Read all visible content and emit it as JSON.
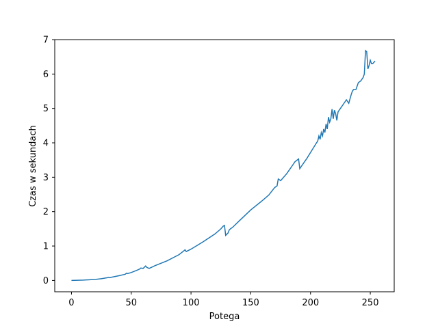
{
  "chart_data": {
    "type": "line",
    "title": "",
    "xlabel": "Potega",
    "ylabel": "Czas w sekundach",
    "xlim": [
      -14,
      270
    ],
    "ylim": [
      -0.33,
      7.0
    ],
    "xticks": [
      0,
      50,
      100,
      150,
      200,
      250
    ],
    "yticks": [
      0,
      1,
      2,
      3,
      4,
      5,
      6,
      7
    ],
    "xtick_labels": [
      "0",
      "50",
      "100",
      "150",
      "200",
      "250"
    ],
    "ytick_labels": [
      "0",
      "1",
      "2",
      "3",
      "4",
      "5",
      "6",
      "7"
    ],
    "grid": false,
    "legend": "none",
    "series": [
      {
        "color": "#1f77b4",
        "x": [
          0,
          10,
          20,
          25,
          30,
          31,
          32,
          33,
          40,
          45,
          46,
          47,
          50,
          55,
          57,
          58,
          60,
          62,
          63,
          65,
          70,
          80,
          90,
          94,
          95,
          96,
          100,
          110,
          120,
          125,
          127,
          128,
          129,
          131,
          132,
          133,
          135,
          140,
          150,
          160,
          165,
          170,
          172,
          173,
          175,
          180,
          181,
          183,
          185,
          187,
          190,
          191,
          192,
          194,
          195,
          197,
          200,
          205,
          206,
          207,
          208,
          209,
          210,
          211,
          212,
          213,
          214,
          215,
          216,
          217,
          218,
          219,
          220,
          221,
          222,
          223,
          224,
          225,
          226,
          228,
          230,
          232,
          234,
          235,
          236,
          238,
          240,
          242,
          244,
          245,
          246,
          247,
          248,
          249,
          250,
          251,
          252,
          254
        ],
        "y": [
          0.0,
          0.01,
          0.03,
          0.05,
          0.08,
          0.09,
          0.08,
          0.09,
          0.14,
          0.18,
          0.21,
          0.2,
          0.23,
          0.3,
          0.33,
          0.36,
          0.35,
          0.42,
          0.38,
          0.35,
          0.43,
          0.57,
          0.75,
          0.86,
          0.89,
          0.84,
          0.91,
          1.12,
          1.35,
          1.5,
          1.58,
          1.6,
          1.31,
          1.38,
          1.47,
          1.5,
          1.55,
          1.72,
          2.05,
          2.33,
          2.48,
          2.7,
          2.75,
          2.95,
          2.9,
          3.1,
          3.15,
          3.25,
          3.35,
          3.45,
          3.53,
          3.25,
          3.3,
          3.4,
          3.45,
          3.55,
          3.72,
          4.0,
          4.05,
          4.2,
          4.1,
          4.3,
          4.2,
          4.4,
          4.3,
          4.55,
          4.4,
          4.75,
          4.6,
          4.7,
          4.98,
          4.7,
          4.95,
          4.85,
          4.65,
          4.9,
          4.95,
          5.0,
          5.05,
          5.15,
          5.25,
          5.15,
          5.4,
          5.5,
          5.55,
          5.55,
          5.75,
          5.8,
          5.9,
          6.0,
          6.68,
          6.65,
          6.15,
          6.25,
          6.4,
          6.3,
          6.3,
          6.38
        ]
      }
    ]
  }
}
